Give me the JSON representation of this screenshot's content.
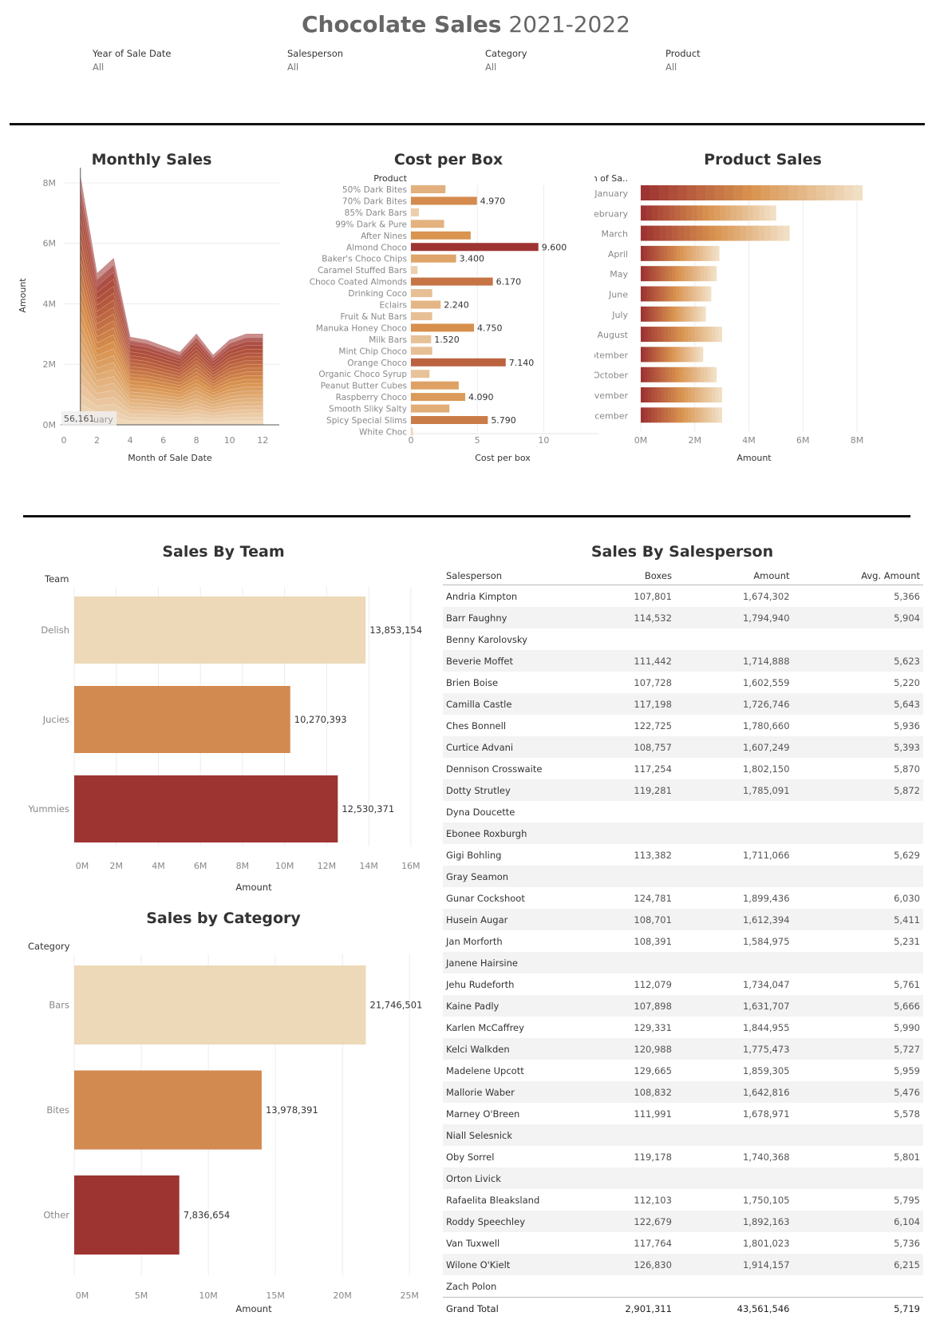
{
  "header": {
    "title_bold": "Chocolate Sales",
    "title_years": "2021-2022"
  },
  "filters": [
    {
      "label": "Year of Sale Date",
      "value": "All"
    },
    {
      "label": "Salesperson",
      "value": "All"
    },
    {
      "label": "Category",
      "value": "All"
    },
    {
      "label": "Product",
      "value": "All"
    }
  ],
  "colors": {
    "light": "#edd9b8",
    "mid": "#d38a50",
    "dark": "#9e3432",
    "rule": "#111111"
  },
  "chart_data": [
    {
      "id": "monthly",
      "type": "area",
      "title": "Monthly Sales",
      "xlabel": "Month of Sale Date",
      "ylabel": "Amount",
      "x": [
        1,
        2,
        3,
        4,
        5,
        6,
        7,
        8,
        9,
        10,
        11,
        12
      ],
      "totals": [
        8200000,
        5000000,
        5500000,
        2900000,
        2800000,
        2600000,
        2400000,
        3000000,
        2300000,
        2800000,
        3000000,
        3000000
      ],
      "layers": 24,
      "xlim": [
        0,
        13
      ],
      "ylim": [
        0,
        8500000
      ],
      "xticks": [
        0,
        2,
        4,
        6,
        8,
        10,
        12
      ],
      "xtick_labels": [
        "0",
        "2",
        "4",
        "6",
        "8",
        "10",
        "12"
      ],
      "yticks": [
        0,
        2000000,
        4000000,
        6000000,
        8000000
      ],
      "ytick_labels": [
        "0M",
        "2M",
        "4M",
        "6M",
        "8M"
      ],
      "tooltip_value": "56,161",
      "tooltip_month": "uary"
    },
    {
      "id": "cost",
      "type": "bar",
      "title": "Cost per Box",
      "header": "Product",
      "xlabel": "Cost per box",
      "xlim": [
        0,
        11
      ],
      "xticks": [
        0,
        5,
        10
      ],
      "xtick_labels": [
        "0",
        "5",
        "10"
      ],
      "categories": [
        "50% Dark Bites",
        "70% Dark Bites",
        "85% Dark Bars",
        "99% Dark & Pure",
        "After Nines",
        "Almond Choco",
        "Baker's Choco Chips",
        "Caramel Stuffed Bars",
        "Choco Coated Almonds",
        "Drinking Coco",
        "Eclairs",
        "Fruit & Nut Bars",
        "Manuka Honey Choco",
        "Milk Bars",
        "Mint Chip Choco",
        "Orange Choco",
        "Organic Choco Syrup",
        "Peanut Butter Cubes",
        "Raspberry Choco",
        "Smooth Sliky Salty",
        "Spicy Special Slims",
        "White Choc"
      ],
      "values": [
        2.6,
        4.97,
        0.6,
        2.5,
        4.5,
        9.6,
        3.4,
        0.5,
        6.17,
        1.6,
        2.24,
        1.6,
        4.75,
        1.52,
        1.6,
        7.14,
        1.4,
        3.6,
        4.09,
        2.9,
        5.79,
        0.15
      ],
      "labels": [
        "",
        "4.970",
        "",
        "",
        "",
        "9.600",
        "3.400",
        "",
        "6.170",
        "",
        "2.240",
        "",
        "4.750",
        "1.520",
        "",
        "7.140",
        "",
        "",
        "4.090",
        "",
        "5.790",
        ""
      ]
    },
    {
      "id": "product",
      "type": "bar",
      "title": "Product Sales",
      "header": "Month of Sa..",
      "xlabel": "Amount",
      "xlim": [
        0,
        8500000
      ],
      "xticks": [
        0,
        2000000,
        4000000,
        6000000,
        8000000
      ],
      "xtick_labels": [
        "0M",
        "2M",
        "4M",
        "6M",
        "8M"
      ],
      "categories": [
        "January",
        "February",
        "March",
        "April",
        "May",
        "June",
        "July",
        "August",
        "September",
        "October",
        "November",
        "December"
      ],
      "values": [
        8200000,
        5000000,
        5500000,
        2900000,
        2800000,
        2600000,
        2400000,
        3000000,
        2300000,
        2800000,
        3000000,
        3000000
      ],
      "segments": 24
    },
    {
      "id": "team",
      "type": "bar",
      "title": "Sales By Team",
      "header": "Team",
      "xlabel": "Amount",
      "xlim": [
        0,
        16500000
      ],
      "xticks": [
        0,
        2000000,
        4000000,
        6000000,
        8000000,
        10000000,
        12000000,
        14000000,
        16000000
      ],
      "xtick_labels": [
        "0M",
        "2M",
        "4M",
        "6M",
        "8M",
        "10M",
        "12M",
        "14M",
        "16M"
      ],
      "categories": [
        "Delish",
        "Jucies",
        "Yummies"
      ],
      "values": [
        13853154,
        10270393,
        12530371
      ],
      "labels": [
        "13,853,154",
        "10,270,393",
        "12,530,371"
      ]
    },
    {
      "id": "category",
      "type": "bar",
      "title": "Sales by Category",
      "header": "Category",
      "xlabel": "Amount",
      "xlim": [
        0,
        26000000
      ],
      "xticks": [
        0,
        5000000,
        10000000,
        15000000,
        20000000,
        25000000
      ],
      "xtick_labels": [
        "0M",
        "5M",
        "10M",
        "15M",
        "20M",
        "25M"
      ],
      "categories": [
        "Bars",
        "Bites",
        "Other"
      ],
      "values": [
        21746501,
        13978391,
        7836654
      ],
      "labels": [
        "21,746,501",
        "13,978,391",
        "7,836,654"
      ]
    },
    {
      "id": "salesperson",
      "type": "table",
      "title": "Sales By Salesperson",
      "columns": [
        "Salesperson",
        "Boxes",
        "Amount",
        "Avg. Amount"
      ],
      "rows": [
        [
          "Andria Kimpton",
          "107,801",
          "1,674,302",
          "5,366"
        ],
        [
          "Barr Faughny",
          "114,532",
          "1,794,940",
          "5,904"
        ],
        [
          "Benny Karolovsky",
          "",
          "",
          ""
        ],
        [
          "Beverie Moffet",
          "111,442",
          "1,714,888",
          "5,623"
        ],
        [
          "Brien Boise",
          "107,728",
          "1,602,559",
          "5,220"
        ],
        [
          "Camilla Castle",
          "117,198",
          "1,726,746",
          "5,643"
        ],
        [
          "Ches Bonnell",
          "122,725",
          "1,780,660",
          "5,936"
        ],
        [
          "Curtice Advani",
          "108,757",
          "1,607,249",
          "5,393"
        ],
        [
          "Dennison Crosswaite",
          "117,254",
          "1,802,150",
          "5,870"
        ],
        [
          "Dotty Strutley",
          "119,281",
          "1,785,091",
          "5,872"
        ],
        [
          "Dyna Doucette",
          "",
          "",
          ""
        ],
        [
          "Ebonee Roxburgh",
          "",
          "",
          ""
        ],
        [
          "Gigi Bohling",
          "113,382",
          "1,711,066",
          "5,629"
        ],
        [
          "Gray Seamon",
          "",
          "",
          ""
        ],
        [
          "Gunar Cockshoot",
          "124,781",
          "1,899,436",
          "6,030"
        ],
        [
          "Husein Augar",
          "108,701",
          "1,612,394",
          "5,411"
        ],
        [
          "Jan Morforth",
          "108,391",
          "1,584,975",
          "5,231"
        ],
        [
          "Janene Hairsine",
          "",
          "",
          ""
        ],
        [
          "Jehu Rudeforth",
          "112,079",
          "1,734,047",
          "5,761"
        ],
        [
          "Kaine Padly",
          "107,898",
          "1,631,707",
          "5,666"
        ],
        [
          "Karlen McCaffrey",
          "129,331",
          "1,844,955",
          "5,990"
        ],
        [
          "Kelci Walkden",
          "120,988",
          "1,775,473",
          "5,727"
        ],
        [
          "Madelene Upcott",
          "129,665",
          "1,859,305",
          "5,959"
        ],
        [
          "Mallorie Waber",
          "108,832",
          "1,642,816",
          "5,476"
        ],
        [
          "Marney O'Breen",
          "111,991",
          "1,678,971",
          "5,578"
        ],
        [
          "Niall Selesnick",
          "",
          "",
          ""
        ],
        [
          "Oby Sorrel",
          "119,178",
          "1,740,368",
          "5,801"
        ],
        [
          "Orton Livick",
          "",
          "",
          ""
        ],
        [
          "Rafaelita Bleaksland",
          "112,103",
          "1,750,105",
          "5,795"
        ],
        [
          "Roddy Speechley",
          "122,679",
          "1,892,163",
          "6,104"
        ],
        [
          "Van Tuxwell",
          "117,764",
          "1,801,023",
          "5,736"
        ],
        [
          "Wilone O'Kielt",
          "126,830",
          "1,914,157",
          "6,215"
        ],
        [
          "Zach Polon",
          "",
          "",
          ""
        ]
      ],
      "total": [
        "Grand Total",
        "2,901,311",
        "43,561,546",
        "5,719"
      ]
    }
  ]
}
